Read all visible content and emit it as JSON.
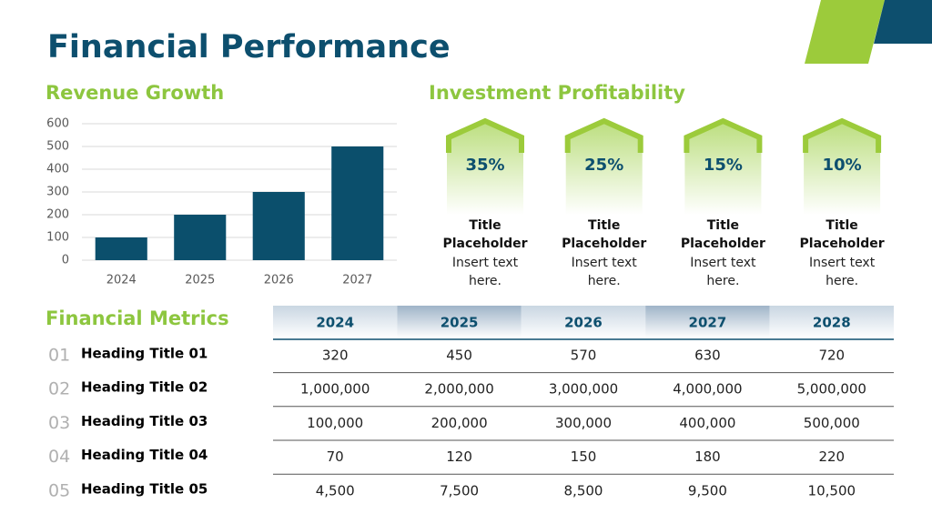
{
  "title": "Financial Performance",
  "chart_data": {
    "type": "bar",
    "title": "Revenue Growth",
    "categories": [
      "2024",
      "2025",
      "2026",
      "2027"
    ],
    "values": [
      100,
      200,
      300,
      500
    ],
    "color": "#0b4f6c",
    "ylim": [
      0,
      600
    ],
    "yticks": [
      0,
      100,
      200,
      300,
      400,
      500,
      600
    ],
    "grid": true
  },
  "profitability": {
    "title": "Investment Profitability",
    "items": [
      {
        "value": "35%",
        "title": "Title Placeholder",
        "text": "Insert text here."
      },
      {
        "value": "25%",
        "title": "Title Placeholder",
        "text": "Insert text here."
      },
      {
        "value": "15%",
        "title": "Title Placeholder",
        "text": "Insert text here."
      },
      {
        "value": "10%",
        "title": "Title Placeholder",
        "text": "Insert text here."
      }
    ]
  },
  "metrics": {
    "title": "Financial Metrics",
    "columns": [
      "2024",
      "2025",
      "2026",
      "2027",
      "2028"
    ],
    "rows": [
      {
        "number": "01",
        "heading": "Heading Title 01",
        "cells": [
          "320",
          "450",
          "570",
          "630",
          "720"
        ]
      },
      {
        "number": "02",
        "heading": "Heading Title 02",
        "cells": [
          "1,000,000",
          "2,000,000",
          "3,000,000",
          "4,000,000",
          "5,000,000"
        ]
      },
      {
        "number": "03",
        "heading": "Heading Title 03",
        "cells": [
          "100,000",
          "200,000",
          "300,000",
          "400,000",
          "500,000"
        ]
      },
      {
        "number": "04",
        "heading": "Heading Title 04",
        "cells": [
          "70",
          "120",
          "150",
          "180",
          "220"
        ]
      },
      {
        "number": "05",
        "heading": "Heading Title 05",
        "cells": [
          "4,500",
          "7,500",
          "8,500",
          "9,500",
          "10,500"
        ]
      }
    ]
  }
}
